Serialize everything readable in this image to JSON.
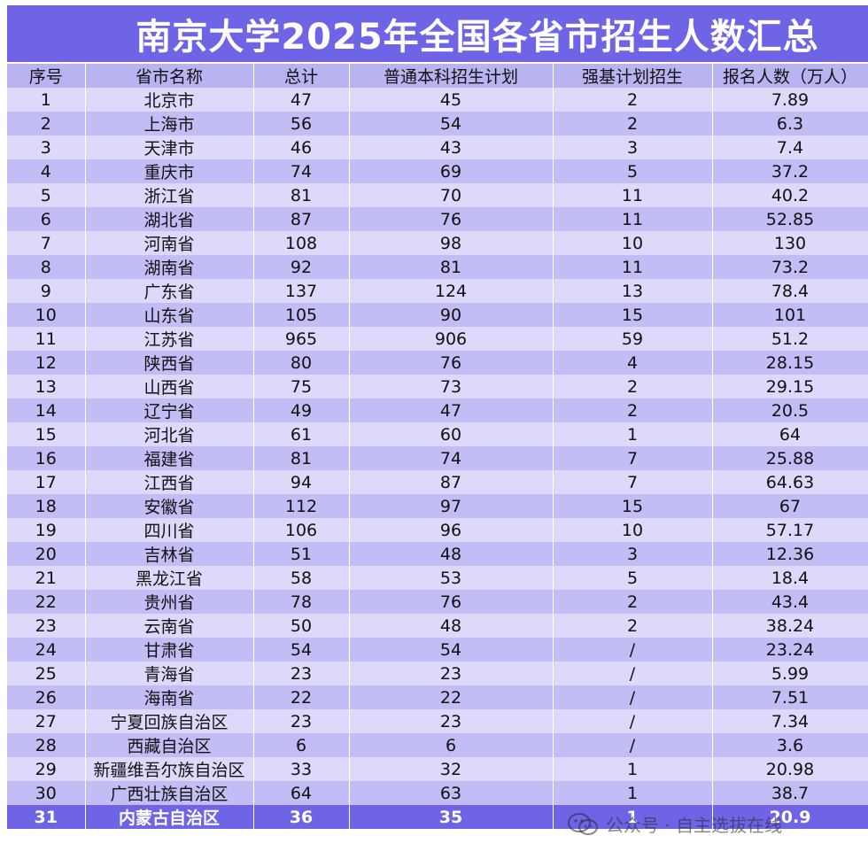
{
  "title": "南京大学2025年全国各省市招生人数汇总",
  "headers": [
    "序号",
    "省市名称",
    "总计",
    "普通本科招生计划",
    "强基计划招生",
    "报名人数（万人）"
  ],
  "rows": [
    [
      "1",
      "北京市",
      "47",
      "45",
      "2",
      "7.89"
    ],
    [
      "2",
      "上海市",
      "56",
      "54",
      "2",
      "6.3"
    ],
    [
      "3",
      "天津市",
      "46",
      "43",
      "3",
      "7.4"
    ],
    [
      "4",
      "重庆市",
      "74",
      "69",
      "5",
      "37.2"
    ],
    [
      "5",
      "浙江省",
      "81",
      "70",
      "11",
      "40.2"
    ],
    [
      "6",
      "湖北省",
      "87",
      "76",
      "11",
      "52.85"
    ],
    [
      "7",
      "河南省",
      "108",
      "98",
      "10",
      "130"
    ],
    [
      "8",
      "湖南省",
      "92",
      "81",
      "11",
      "73.2"
    ],
    [
      "9",
      "广东省",
      "137",
      "124",
      "13",
      "78.4"
    ],
    [
      "10",
      "山东省",
      "105",
      "90",
      "15",
      "101"
    ],
    [
      "11",
      "江苏省",
      "965",
      "906",
      "59",
      "51.2"
    ],
    [
      "12",
      "陕西省",
      "80",
      "76",
      "4",
      "28.15"
    ],
    [
      "13",
      "山西省",
      "75",
      "73",
      "2",
      "29.15"
    ],
    [
      "14",
      "辽宁省",
      "49",
      "47",
      "2",
      "20.5"
    ],
    [
      "15",
      "河北省",
      "61",
      "60",
      "1",
      "64"
    ],
    [
      "16",
      "福建省",
      "81",
      "74",
      "7",
      "25.88"
    ],
    [
      "17",
      "江西省",
      "94",
      "87",
      "7",
      "64.63"
    ],
    [
      "18",
      "安徽省",
      "112",
      "97",
      "15",
      "67"
    ],
    [
      "19",
      "四川省",
      "106",
      "96",
      "10",
      "57.17"
    ],
    [
      "20",
      "吉林省",
      "51",
      "48",
      "3",
      "12.36"
    ],
    [
      "21",
      "黑龙江省",
      "58",
      "53",
      "5",
      "18.4"
    ],
    [
      "22",
      "贵州省",
      "78",
      "76",
      "2",
      "43.4"
    ],
    [
      "23",
      "云南省",
      "50",
      "48",
      "2",
      "38.24"
    ],
    [
      "24",
      "甘肃省",
      "54",
      "54",
      "/",
      "23.24"
    ],
    [
      "25",
      "青海省",
      "23",
      "23",
      "/",
      "5.99"
    ],
    [
      "26",
      "海南省",
      "22",
      "22",
      "/",
      "7.51"
    ],
    [
      "27",
      "宁夏回族自治区",
      "23",
      "23",
      "/",
      "7.34"
    ],
    [
      "28",
      "西藏自治区",
      "6",
      "6",
      "/",
      "3.6"
    ],
    [
      "29",
      "新疆维吾尔族自治区",
      "33",
      "32",
      "1",
      "20.98"
    ],
    [
      "30",
      "广西壮族自治区",
      "64",
      "63",
      "1",
      "38.7"
    ],
    [
      "31",
      "内蒙古自治区",
      "36",
      "35",
      "1",
      "20.9"
    ]
  ],
  "watermark": {
    "text": "公众号 · 自主选拔在线",
    "icon": "wechat-icon"
  },
  "colors": {
    "accent": "#6f63e6",
    "header_bg": "#b9b3f2",
    "row_light": "#dcd9fb",
    "row_dark": "#c3bdf5"
  }
}
